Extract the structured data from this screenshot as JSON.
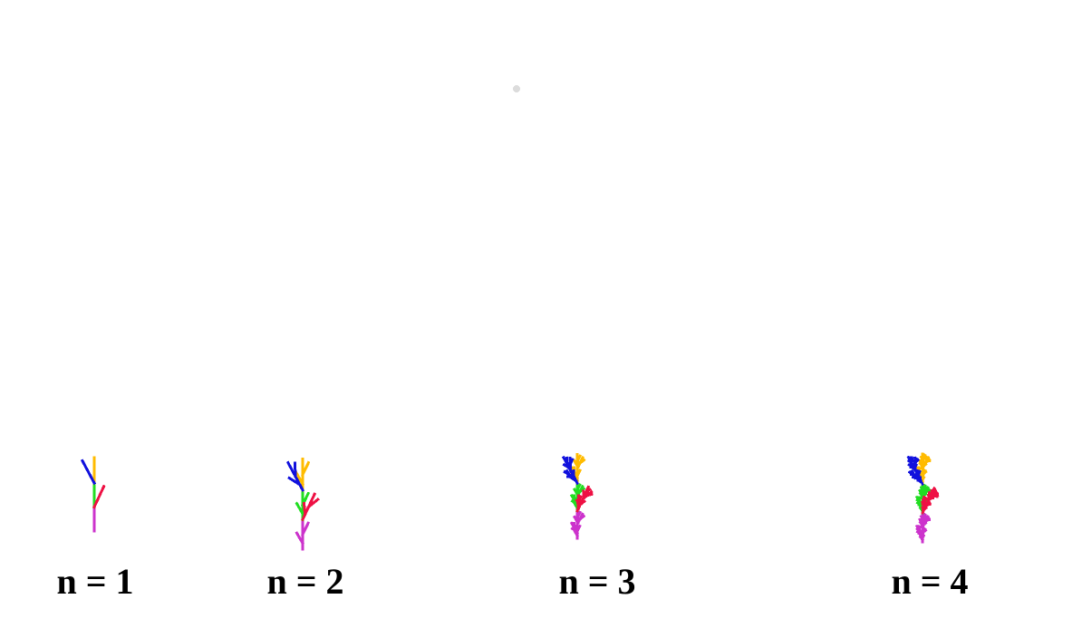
{
  "colors": {
    "segment_a": "#cc33cc",
    "segment_b": "#22dd22",
    "segment_c": "#ffbb00",
    "segment_d": "#1111dd",
    "segment_e": "#ee1144",
    "caption": "#000000"
  },
  "stages": [
    {
      "label": "n = 1",
      "n": 1
    },
    {
      "label": "n = 2",
      "n": 2
    },
    {
      "label": "n = 3",
      "n": 3
    },
    {
      "label": "n = 4",
      "n": 4
    }
  ]
}
